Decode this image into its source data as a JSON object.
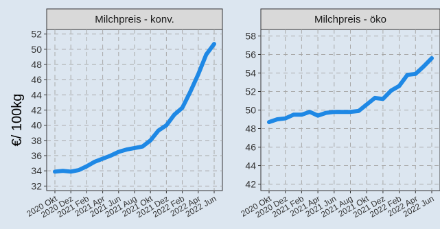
{
  "chart_data": {
    "type": "line",
    "ylabel": "€/ 100kg",
    "series_color": "#1e88e5",
    "background": "#dce6f0",
    "strip_color": "#d9d9d9",
    "grid": true,
    "grid_style": "dashed",
    "x_tick_labels": [
      "2020 Okt",
      "2020 Dez",
      "2021 Feb",
      "2021 Apr",
      "2021 Jun",
      "2021 Aug",
      "2021 Okt",
      "2021 Dez",
      "2022 Feb",
      "2022 Apr",
      "2022 Jun"
    ],
    "panels": [
      {
        "title": "Milchpreis - konv.",
        "ylim": [
          31.4,
          52.6
        ],
        "yticks": [
          32,
          34,
          36,
          38,
          40,
          42,
          44,
          46,
          48,
          50,
          52
        ],
        "x": [
          "2020-10",
          "2020-11",
          "2020-12",
          "2021-01",
          "2021-02",
          "2021-03",
          "2021-04",
          "2021-05",
          "2021-06",
          "2021-07",
          "2021-08",
          "2021-09",
          "2021-10",
          "2021-11",
          "2021-12",
          "2022-01",
          "2022-02",
          "2022-03",
          "2022-04",
          "2022-05",
          "2022-06"
        ],
        "values": [
          33.9,
          34.0,
          33.9,
          34.1,
          34.6,
          35.2,
          35.6,
          36.0,
          36.5,
          36.8,
          37.0,
          37.2,
          38.0,
          39.3,
          40.0,
          41.4,
          42.3,
          44.4,
          46.7,
          49.3,
          50.7
        ]
      },
      {
        "title": "Milchpreis - öko",
        "ylim": [
          41.3,
          58.7
        ],
        "yticks": [
          42,
          44,
          46,
          48,
          50,
          52,
          54,
          56,
          58
        ],
        "x": [
          "2020-10",
          "2020-11",
          "2020-12",
          "2021-01",
          "2021-02",
          "2021-03",
          "2021-04",
          "2021-05",
          "2021-06",
          "2021-07",
          "2021-08",
          "2021-09",
          "2021-10",
          "2021-11",
          "2021-12",
          "2022-01",
          "2022-02",
          "2022-03",
          "2022-04",
          "2022-05",
          "2022-06"
        ],
        "values": [
          48.7,
          49.0,
          49.1,
          49.5,
          49.5,
          49.8,
          49.4,
          49.7,
          49.8,
          49.8,
          49.8,
          49.9,
          50.6,
          51.3,
          51.2,
          52.1,
          52.6,
          53.8,
          53.9,
          54.7,
          55.6
        ]
      }
    ]
  }
}
